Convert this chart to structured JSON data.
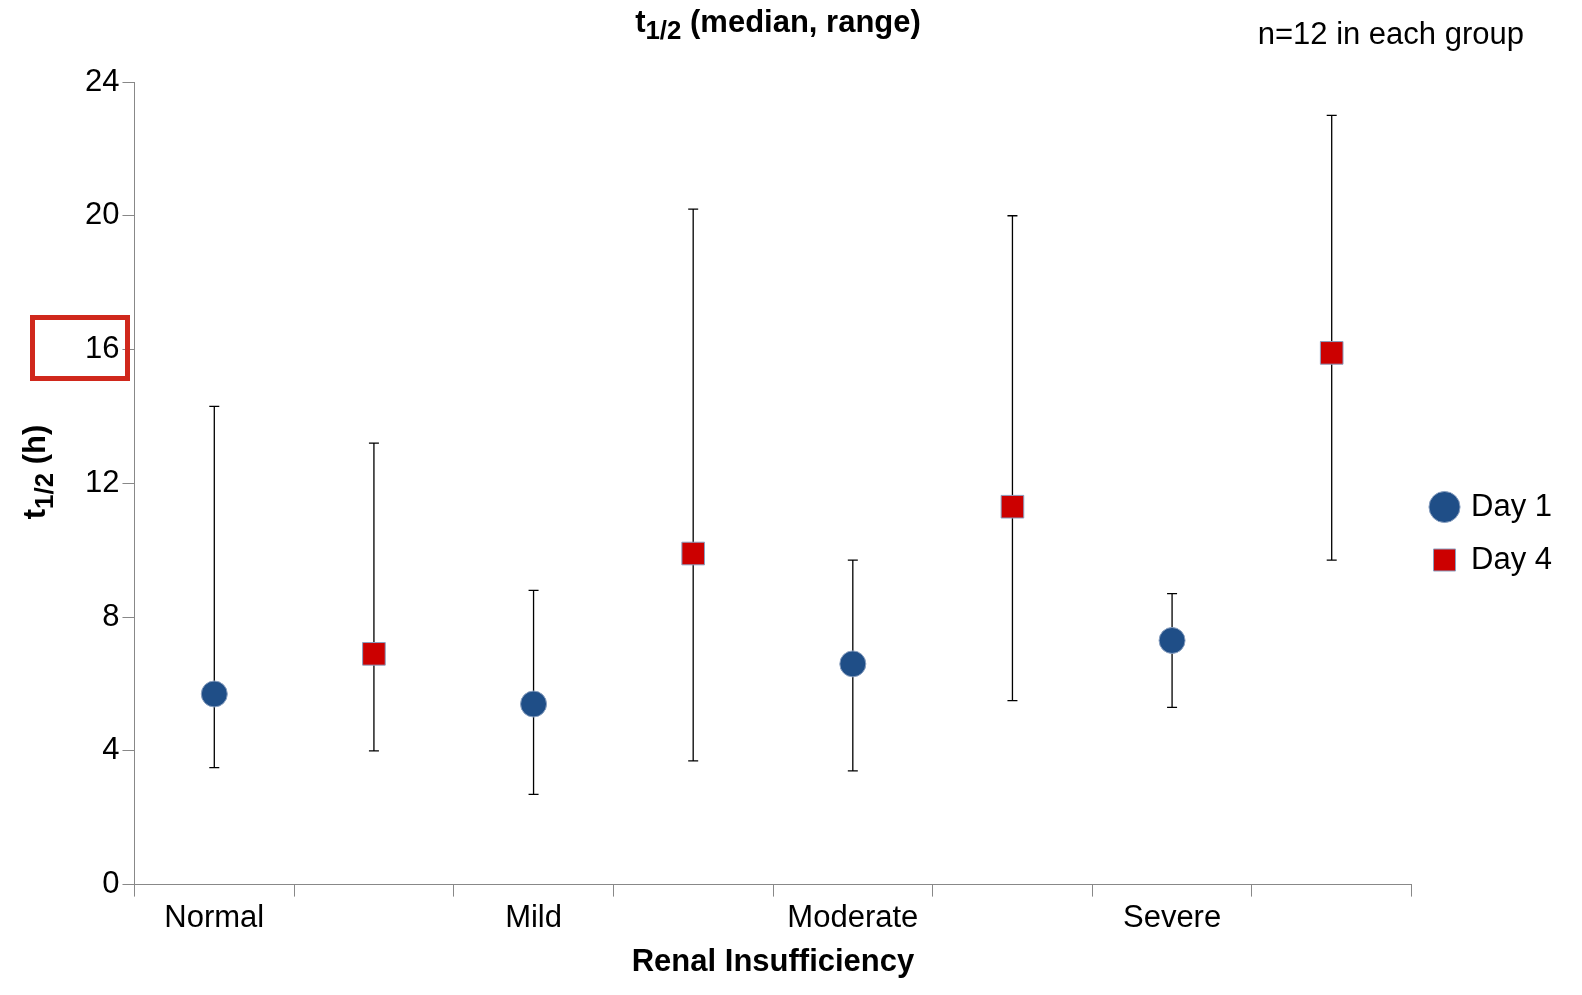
{
  "chart_data": {
    "type": "scatter",
    "title": "t$_{1/2}$ (median, range)",
    "xlabel": "Renal Insufficiency",
    "ylabel": "t$_{1/2}$ (h)",
    "annotations": [
      "n=12 in each group"
    ],
    "categories": [
      "Normal",
      null,
      "Mild",
      null,
      "Moderate",
      null,
      "Severe",
      null
    ],
    "series": [
      {
        "name": "Day 1",
        "color": "#1f4e87",
        "marker": "circle",
        "values": [
          5.7,
          null,
          5.4,
          null,
          6.6,
          null,
          7.3,
          null
        ],
        "errors": [
          [
            3.5,
            14.3
          ],
          null,
          [
            2.7,
            8.8
          ],
          null,
          [
            3.4,
            9.7
          ],
          null,
          [
            5.3,
            8.7
          ],
          null
        ]
      },
      {
        "name": "Day 4",
        "color": "#cc0000",
        "marker": "square",
        "values": [
          null,
          6.9,
          null,
          9.9,
          null,
          11.3,
          null,
          15.9
        ],
        "errors": [
          null,
          [
            4.0,
            13.2
          ],
          null,
          [
            3.7,
            20.2
          ],
          null,
          [
            5.5,
            20.0
          ],
          null,
          [
            9.7,
            23.0
          ]
        ]
      }
    ],
    "ylim": [
      0,
      24
    ],
    "yticks": [
      0,
      4,
      8,
      12,
      16,
      20,
      24
    ],
    "grid": false,
    "legend": "right"
  }
}
